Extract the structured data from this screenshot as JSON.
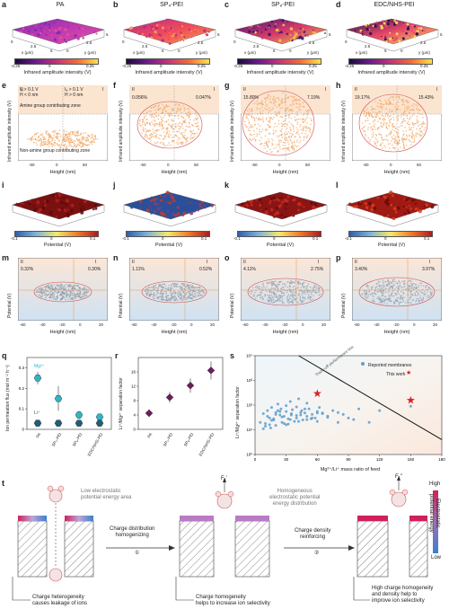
{
  "row1": {
    "panels": [
      {
        "letter": "a",
        "title": "PA"
      },
      {
        "letter": "b",
        "title": "SP₄-PEI"
      },
      {
        "letter": "c",
        "title": "SP₈-PEI"
      },
      {
        "letter": "d",
        "title": "EDC/NHS-PEI"
      }
    ],
    "axis_x": "x (μm)",
    "axis_y": "y (μm)",
    "axis_ticks": [
      "0",
      "2.5",
      "5"
    ],
    "colorbar_label": "Infrared amplitude intensity (V)",
    "colorbar_ticks": [
      "-0.25",
      "0",
      "0.25"
    ]
  },
  "row2": {
    "panels": [
      {
        "letter": "e",
        "left_pct": "",
        "right_pct": ""
      },
      {
        "letter": "f",
        "left_pct": "0.056%",
        "right_pct": "0.047%"
      },
      {
        "letter": "g",
        "left_pct": "15.80%",
        "right_pct": "7.19%"
      },
      {
        "letter": "h",
        "left_pct": "19.17%",
        "right_pct": "15.43%"
      }
    ],
    "ylabel": "Infrared amplitude intensity (V)",
    "xlabel": "Height (nm)",
    "xticks": [
      "-50",
      "0",
      "50"
    ],
    "quad_labels": [
      "II",
      "I"
    ],
    "e_legend_left": "Iₐ > 0.1 V\nH < 0 nm",
    "e_legend_right": "Iₐ > 0.1 V\nH > 0 nm",
    "e_zone_top": "Amine group contributing zone",
    "e_zone_bottom": "Non-amine group contributing zone"
  },
  "row3": {
    "panels": [
      {
        "letter": "i"
      },
      {
        "letter": "j"
      },
      {
        "letter": "k"
      },
      {
        "letter": "l"
      }
    ],
    "colorbar_label": "Potential (V)",
    "colorbar_ticks": [
      "-0.1",
      "0",
      "0.1"
    ]
  },
  "row4": {
    "panels": [
      {
        "letter": "m",
        "left_pct": "0.32%",
        "right_pct": "0.30%"
      },
      {
        "letter": "n",
        "left_pct": "1.11%",
        "right_pct": "0.52%"
      },
      {
        "letter": "o",
        "left_pct": "4.11%",
        "right_pct": "2.75%"
      },
      {
        "letter": "p",
        "left_pct": "3.40%",
        "right_pct": "3.97%"
      }
    ],
    "ylabel": "Potential (V)",
    "xlabel": "Height (nm)",
    "xticks": [
      "-60",
      "-40",
      "-20",
      "0",
      "20"
    ],
    "quad_labels": [
      "II",
      "I"
    ]
  },
  "panel_q": {
    "letter": "q",
    "ylabel": "Ion permeation flux (mol m⁻² h⁻¹)",
    "yticks": [
      "0",
      "0.1",
      "0.2",
      "0.3"
    ],
    "mg_label": "Mg²⁺",
    "li_label": "Li⁺",
    "mg_color": "#2fb5c4",
    "li_color": "#1e5f78"
  },
  "panel_r": {
    "letter": "r",
    "ylabel": "Li⁺/Mg²⁺ separation factor",
    "yticks": [
      "0",
      "4",
      "8",
      "12",
      "16"
    ]
  },
  "panel_s": {
    "letter": "s",
    "ylabel": "Li⁺/Mg²⁺ separation factor",
    "xlabel": "Mg²⁺/Li⁺ mass ratio of feed",
    "xticks": [
      "0",
      "30",
      "60",
      "90",
      "120",
      "150",
      "180"
    ],
    "yticks": [
      "10⁰",
      "10¹",
      "10²",
      "10³",
      "10⁴"
    ],
    "legend_reported": "Reported membranes",
    "legend_thiswork": "This work",
    "trade_off": "Trade-off performance line"
  },
  "chart_data": [
    {
      "type": "scatter",
      "categories": [
        "PA",
        "SP₄-PEI",
        "SP₈-PEI",
        "EDC/NHS-PEI"
      ],
      "series": [
        {
          "name": "Mg²⁺",
          "values": [
            0.25,
            0.15,
            0.07,
            0.06
          ],
          "errors": [
            0.03,
            0.06,
            0.02,
            0.015
          ]
        },
        {
          "name": "Li⁺",
          "values": [
            0.03,
            0.03,
            0.03,
            0.03
          ],
          "errors": [
            0.01,
            0.01,
            0.01,
            0.01
          ]
        }
      ],
      "ylim": [
        0,
        0.35
      ]
    },
    {
      "type": "scatter",
      "categories": [
        "PA",
        "SP₄-PEI",
        "SP₈-PEI",
        "EDC/NHS-PEI"
      ],
      "series": [
        {
          "name": "",
          "values": [
            4.5,
            8.9,
            12.2,
            16.4
          ],
          "errors": [
            1.0,
            1.5,
            2.0,
            2.5
          ]
        }
      ],
      "ylim": [
        0,
        20
      ]
    },
    {
      "type": "scatter",
      "series": [
        {
          "name": "Reported membranes",
          "x": [
            5,
            8,
            10,
            12,
            14,
            15,
            16,
            18,
            20,
            20,
            22,
            24,
            25,
            26,
            28,
            30,
            30,
            30,
            32,
            34,
            35,
            36,
            38,
            40,
            40,
            42,
            44,
            45,
            46,
            48,
            50,
            50,
            52,
            55,
            58,
            60,
            60,
            62,
            65,
            70,
            75,
            80,
            85,
            90,
            95,
            100,
            110,
            120,
            150,
            8,
            12,
            18,
            22,
            28,
            35,
            42,
            48,
            55,
            65,
            10,
            16,
            24,
            32,
            40,
            50,
            60,
            70,
            80,
            14,
            20,
            26,
            34,
            44,
            54
          ],
          "y": [
            20,
            45,
            18,
            60,
            30,
            12,
            80,
            25,
            50,
            15,
            110,
            40,
            70,
            20,
            35,
            95,
            55,
            16,
            28,
            140,
            45,
            65,
            22,
            85,
            30,
            180,
            40,
            60,
            25,
            48,
            120,
            35,
            70,
            42,
            30,
            55,
            22,
            80,
            48,
            36,
            60,
            50,
            42,
            30,
            26,
            70,
            20,
            60,
            90,
            11,
            35,
            28,
            60,
            18,
            40,
            22,
            70,
            30,
            45,
            14,
            24,
            55,
            17,
            38,
            26,
            48,
            32,
            20,
            16,
            42,
            33,
            26,
            50,
            28
          ]
        },
        {
          "name": "This work",
          "x": [
            60,
            150
          ],
          "y": [
            300,
            160
          ]
        }
      ],
      "xlim": [
        0,
        180
      ],
      "ylim": [
        1,
        10000
      ],
      "yscale": "log"
    }
  ],
  "panel_t": {
    "letter": "t",
    "low_area": "Low electrostatic\npotential energy area",
    "homog_area": "Homogeneous\nelectrostatic potential\nenergy distribution",
    "arrow1_top": "Charge distribution\nhomogenizing",
    "arrow1_num": "①",
    "arrow2_top": "Charge density\nreinforcing",
    "arrow2_num": "②",
    "cap1": "Charge heterogeneity\ncauses leakage of ions",
    "cap2": "Charge homogeneity\nhelps to increase ion selectivity",
    "cap3": "High charge homogeneity\nand density help to\nimprove ion selectivity",
    "force1": "F₁",
    "force2": "F₁'",
    "force3": "F₁''",
    "cb_high": "High",
    "cb_low": "Low",
    "cb_label": "Electrostatic\npotential energy"
  }
}
